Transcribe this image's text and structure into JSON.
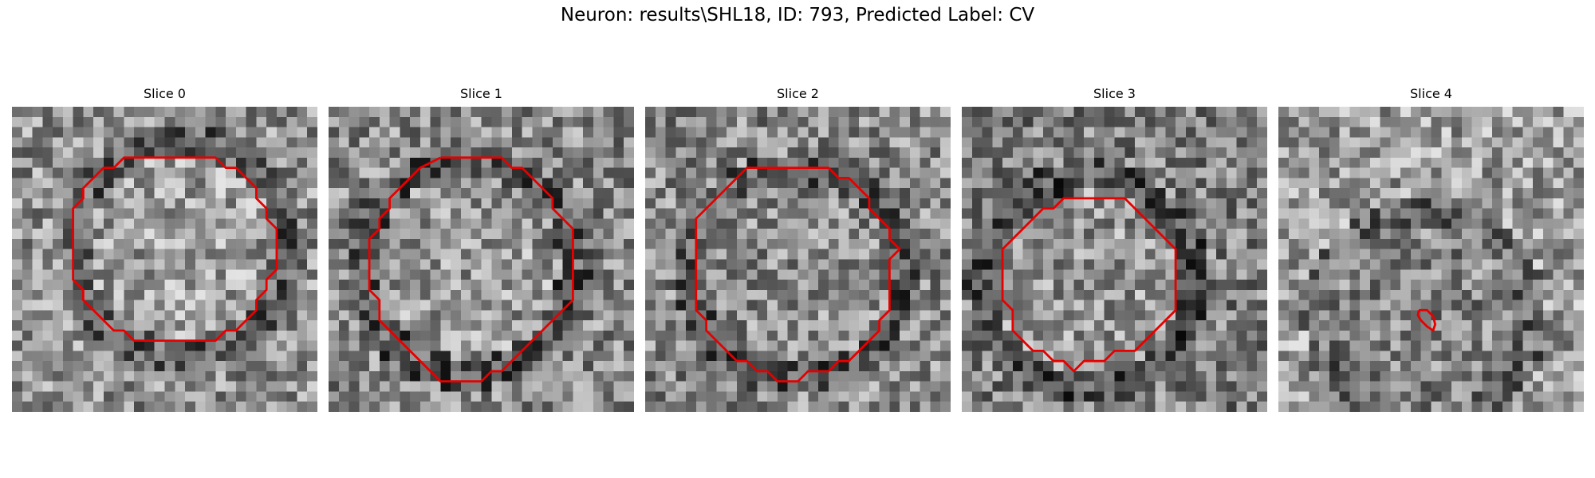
{
  "figure": {
    "title": "Neuron: results\\SHL18, ID: 793, Predicted Label: CV",
    "contour_color": "#e60000"
  },
  "panels": [
    {
      "title": "Slice 0",
      "seed": 11,
      "center_brightness": 0.62,
      "surround_brightness": 0.45,
      "contour": [
        [
          14.0,
          5.0
        ],
        [
          17.0,
          5.0
        ],
        [
          20.0,
          5.0
        ],
        [
          21.0,
          6.0
        ],
        [
          22.0,
          6.0
        ],
        [
          23.0,
          7.0
        ],
        [
          24.0,
          8.0
        ],
        [
          24.0,
          9.0
        ],
        [
          25.0,
          10.0
        ],
        [
          25.0,
          11.0
        ],
        [
          26.0,
          12.0
        ],
        [
          26.0,
          13.0
        ],
        [
          26.0,
          15.0
        ],
        [
          26.0,
          16.0
        ],
        [
          25.0,
          17.0
        ],
        [
          25.0,
          18.0
        ],
        [
          24.0,
          19.0
        ],
        [
          24.0,
          20.0
        ],
        [
          23.0,
          21.0
        ],
        [
          22.0,
          22.0
        ],
        [
          21.0,
          22.0
        ],
        [
          20.0,
          23.0
        ],
        [
          17.0,
          23.0
        ],
        [
          14.0,
          23.0
        ],
        [
          12.0,
          23.0
        ],
        [
          11.0,
          22.0
        ],
        [
          10.0,
          22.0
        ],
        [
          9.0,
          21.0
        ],
        [
          8.0,
          20.0
        ],
        [
          7.0,
          19.0
        ],
        [
          7.0,
          18.0
        ],
        [
          6.0,
          17.0
        ],
        [
          6.0,
          13.0
        ],
        [
          6.0,
          10.0
        ],
        [
          7.0,
          9.0
        ],
        [
          7.0,
          8.0
        ],
        [
          8.0,
          7.0
        ],
        [
          9.0,
          6.0
        ],
        [
          10.0,
          6.0
        ],
        [
          11.0,
          5.0
        ],
        [
          14.0,
          5.0
        ]
      ]
    },
    {
      "title": "Slice 1",
      "seed": 23,
      "center_brightness": 0.6,
      "surround_brightness": 0.42,
      "contour": [
        [
          11.0,
          5.0
        ],
        [
          14.0,
          5.0
        ],
        [
          17.0,
          5.0
        ],
        [
          18.0,
          6.0
        ],
        [
          19.0,
          6.0
        ],
        [
          20.0,
          7.0
        ],
        [
          21.0,
          8.0
        ],
        [
          22.0,
          9.0
        ],
        [
          22.0,
          10.0
        ],
        [
          23.0,
          11.0
        ],
        [
          24.0,
          12.0
        ],
        [
          24.0,
          15.0
        ],
        [
          24.0,
          19.0
        ],
        [
          23.0,
          20.0
        ],
        [
          22.0,
          21.0
        ],
        [
          21.0,
          22.0
        ],
        [
          20.0,
          23.0
        ],
        [
          19.0,
          24.0
        ],
        [
          18.0,
          25.0
        ],
        [
          17.0,
          26.0
        ],
        [
          16.0,
          26.0
        ],
        [
          15.0,
          27.0
        ],
        [
          13.0,
          27.0
        ],
        [
          11.0,
          27.0
        ],
        [
          10.0,
          26.0
        ],
        [
          9.0,
          25.0
        ],
        [
          8.0,
          24.0
        ],
        [
          7.0,
          23.0
        ],
        [
          6.0,
          22.0
        ],
        [
          5.0,
          21.0
        ],
        [
          5.0,
          19.0
        ],
        [
          4.0,
          18.0
        ],
        [
          4.0,
          15.0
        ],
        [
          4.0,
          13.0
        ],
        [
          5.0,
          12.0
        ],
        [
          5.0,
          11.0
        ],
        [
          6.0,
          10.0
        ],
        [
          6.0,
          9.0
        ],
        [
          7.0,
          8.0
        ],
        [
          8.0,
          7.0
        ],
        [
          9.0,
          6.0
        ],
        [
          11.0,
          5.0
        ]
      ]
    },
    {
      "title": "Slice 2",
      "seed": 37,
      "center_brightness": 0.55,
      "surround_brightness": 0.42,
      "contour": [
        [
          12.0,
          6.0
        ],
        [
          15.0,
          6.0
        ],
        [
          18.0,
          6.0
        ],
        [
          19.0,
          7.0
        ],
        [
          20.0,
          7.0
        ],
        [
          21.0,
          8.0
        ],
        [
          22.0,
          9.0
        ],
        [
          22.0,
          10.0
        ],
        [
          23.0,
          11.0
        ],
        [
          24.0,
          12.0
        ],
        [
          24.0,
          13.0
        ],
        [
          25.0,
          14.0
        ],
        [
          24.0,
          15.0
        ],
        [
          24.0,
          17.0
        ],
        [
          24.0,
          19.0
        ],
        [
          24.0,
          20.0
        ],
        [
          23.0,
          21.0
        ],
        [
          23.0,
          22.0
        ],
        [
          22.0,
          23.0
        ],
        [
          21.0,
          24.0
        ],
        [
          20.0,
          25.0
        ],
        [
          19.0,
          25.0
        ],
        [
          18.0,
          26.0
        ],
        [
          16.0,
          26.0
        ],
        [
          15.0,
          27.0
        ],
        [
          13.0,
          27.0
        ],
        [
          12.0,
          26.0
        ],
        [
          11.0,
          26.0
        ],
        [
          10.0,
          25.0
        ],
        [
          9.0,
          25.0
        ],
        [
          8.0,
          24.0
        ],
        [
          7.0,
          23.0
        ],
        [
          6.0,
          22.0
        ],
        [
          6.0,
          21.0
        ],
        [
          5.0,
          20.0
        ],
        [
          5.0,
          18.0
        ],
        [
          5.0,
          15.0
        ],
        [
          5.0,
          12.0
        ],
        [
          5.0,
          11.0
        ],
        [
          6.0,
          10.0
        ],
        [
          7.0,
          9.0
        ],
        [
          8.0,
          8.0
        ],
        [
          9.0,
          7.0
        ],
        [
          10.0,
          6.0
        ],
        [
          12.0,
          6.0
        ]
      ]
    },
    {
      "title": "Slice 3",
      "seed": 53,
      "center_brightness": 0.58,
      "surround_brightness": 0.38,
      "contour": [
        [
          11.0,
          9.0
        ],
        [
          13.0,
          9.0
        ],
        [
          16.0,
          9.0
        ],
        [
          17.0,
          10.0
        ],
        [
          18.0,
          11.0
        ],
        [
          19.0,
          12.0
        ],
        [
          20.0,
          13.0
        ],
        [
          21.0,
          14.0
        ],
        [
          21.0,
          16.0
        ],
        [
          21.0,
          19.0
        ],
        [
          21.0,
          20.0
        ],
        [
          20.0,
          21.0
        ],
        [
          19.0,
          22.0
        ],
        [
          18.0,
          23.0
        ],
        [
          17.0,
          24.0
        ],
        [
          16.0,
          24.0
        ],
        [
          15.0,
          24.0
        ],
        [
          14.0,
          25.0
        ],
        [
          12.0,
          25.0
        ],
        [
          11.0,
          26.0
        ],
        [
          10.0,
          25.0
        ],
        [
          9.0,
          25.0
        ],
        [
          8.0,
          24.0
        ],
        [
          7.0,
          24.0
        ],
        [
          6.0,
          23.0
        ],
        [
          5.0,
          22.0
        ],
        [
          5.0,
          20.0
        ],
        [
          4.0,
          19.0
        ],
        [
          4.0,
          17.0
        ],
        [
          4.0,
          14.0
        ],
        [
          5.0,
          13.0
        ],
        [
          6.0,
          12.0
        ],
        [
          7.0,
          11.0
        ],
        [
          8.0,
          10.0
        ],
        [
          9.0,
          10.0
        ],
        [
          10.0,
          9.0
        ],
        [
          11.0,
          9.0
        ]
      ]
    },
    {
      "title": "Slice 4",
      "seed": 71,
      "center_brightness": 0.52,
      "surround_brightness": 0.5,
      "contour": [
        [
          13.8,
          20.0
        ],
        [
          14.6,
          20.0
        ],
        [
          15.2,
          20.6
        ],
        [
          15.4,
          21.4
        ],
        [
          15.2,
          22.0
        ],
        [
          14.6,
          21.6
        ],
        [
          14.0,
          21.0
        ],
        [
          13.7,
          20.5
        ],
        [
          13.8,
          20.0
        ]
      ]
    }
  ]
}
